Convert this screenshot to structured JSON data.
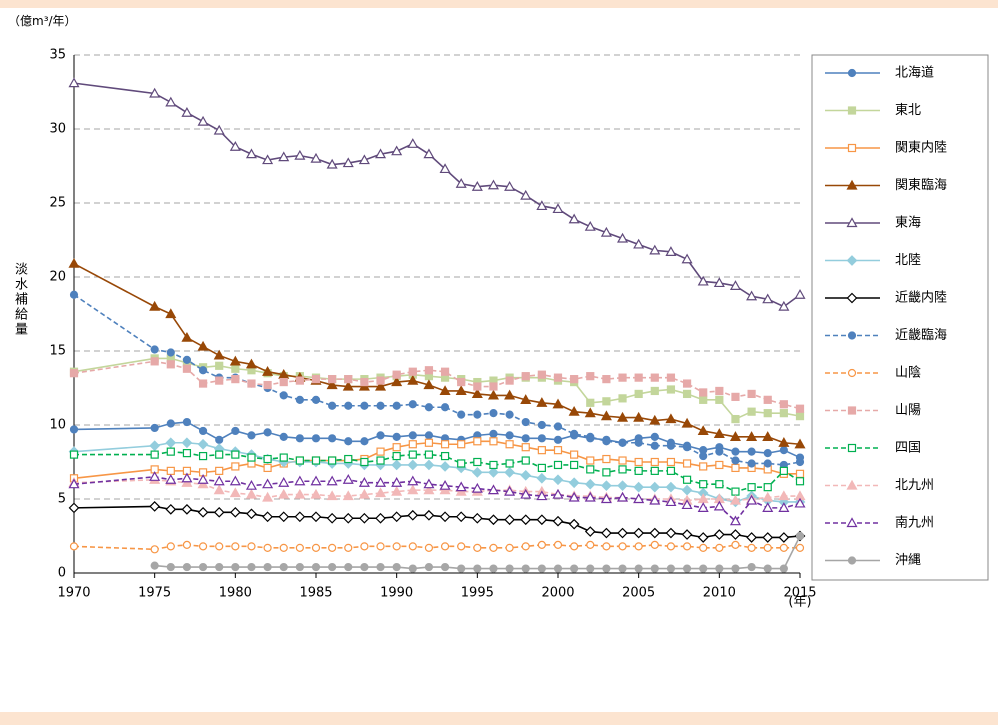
{
  "chart_data": {
    "type": "line",
    "y_unit": "（億m³/年）",
    "ylabel": "淡水補給量",
    "xlabel": "(年)",
    "x": [
      1970,
      1975,
      1976,
      1977,
      1978,
      1979,
      1980,
      1981,
      1982,
      1983,
      1984,
      1985,
      1986,
      1987,
      1988,
      1989,
      1990,
      1991,
      1992,
      1993,
      1994,
      1995,
      1996,
      1997,
      1998,
      1999,
      2000,
      2001,
      2002,
      2003,
      2004,
      2005,
      2006,
      2007,
      2008,
      2009,
      2010,
      2011,
      2012,
      2013,
      2014,
      2015
    ],
    "xlim": [
      1970,
      2015
    ],
    "xticks": [
      1970,
      1975,
      1980,
      1985,
      1990,
      1995,
      2000,
      2005,
      2010,
      2015
    ],
    "ylim": [
      0,
      35
    ],
    "yticks": [
      0,
      5,
      10,
      15,
      20,
      25,
      30,
      35
    ],
    "grid": true,
    "series": [
      {
        "name": "北海道",
        "color": "#4f81bd",
        "marker": "circle",
        "fill": "filled",
        "dash": false,
        "values": [
          9.7,
          9.8,
          10.1,
          10.2,
          9.6,
          9.0,
          9.6,
          9.3,
          9.5,
          9.2,
          9.1,
          9.1,
          9.1,
          8.9,
          8.9,
          9.3,
          9.2,
          9.3,
          9.3,
          9.1,
          9.0,
          9.3,
          9.4,
          9.3,
          9.1,
          9.1,
          9.0,
          9.3,
          9.1,
          9.0,
          8.8,
          9.1,
          9.2,
          8.8,
          8.6,
          8.3,
          8.5,
          8.2,
          8.2,
          8.1,
          8.3,
          7.8
        ]
      },
      {
        "name": "東北",
        "color": "#c3d69b",
        "marker": "square",
        "fill": "filled",
        "dash": false,
        "values": [
          13.6,
          14.5,
          14.5,
          14.2,
          13.9,
          14.0,
          13.8,
          13.7,
          13.5,
          13.3,
          13.3,
          13.2,
          13.1,
          13.1,
          13.1,
          13.2,
          13.3,
          13.4,
          13.3,
          13.2,
          13.1,
          12.9,
          13.0,
          13.2,
          13.2,
          13.2,
          13.0,
          12.9,
          11.5,
          11.6,
          11.8,
          12.1,
          12.3,
          12.4,
          12.1,
          11.7,
          11.7,
          10.4,
          10.9,
          10.8,
          10.8,
          10.6
        ]
      },
      {
        "name": "関東内陸",
        "color": "#f79646",
        "marker": "square",
        "fill": "open",
        "dash": false,
        "values": [
          6.4,
          7.0,
          6.9,
          6.9,
          6.8,
          6.9,
          7.2,
          7.4,
          7.1,
          7.4,
          7.6,
          7.6,
          7.6,
          7.6,
          7.7,
          8.2,
          8.5,
          8.7,
          8.8,
          8.7,
          8.7,
          8.9,
          8.9,
          8.7,
          8.5,
          8.3,
          8.3,
          8.0,
          7.6,
          7.7,
          7.6,
          7.5,
          7.5,
          7.5,
          7.4,
          7.2,
          7.3,
          7.1,
          7.1,
          7.0,
          6.7,
          6.7
        ]
      },
      {
        "name": "関東臨海",
        "color": "#984807",
        "marker": "triangle",
        "fill": "filled",
        "dash": false,
        "values": [
          20.9,
          18.0,
          17.5,
          15.9,
          15.3,
          14.7,
          14.3,
          14.1,
          13.6,
          13.4,
          13.2,
          13.0,
          12.7,
          12.6,
          12.6,
          12.6,
          12.9,
          13.0,
          12.7,
          12.3,
          12.3,
          12.1,
          12.0,
          12.0,
          11.7,
          11.5,
          11.4,
          10.9,
          10.8,
          10.6,
          10.5,
          10.5,
          10.3,
          10.4,
          10.1,
          9.6,
          9.4,
          9.2,
          9.2,
          9.2,
          8.8,
          8.7
        ]
      },
      {
        "name": "東海",
        "color": "#604a7b",
        "marker": "triangle",
        "fill": "open",
        "dash": false,
        "values": [
          33.1,
          32.4,
          31.8,
          31.1,
          30.5,
          29.9,
          28.8,
          28.3,
          27.9,
          28.1,
          28.2,
          28.0,
          27.6,
          27.7,
          27.9,
          28.3,
          28.5,
          29.0,
          28.3,
          27.3,
          26.3,
          26.1,
          26.2,
          26.1,
          25.5,
          24.8,
          24.6,
          23.9,
          23.4,
          23.0,
          22.6,
          22.2,
          21.8,
          21.7,
          21.2,
          19.7,
          19.6,
          19.4,
          18.7,
          18.5,
          18.0,
          18.8
        ]
      },
      {
        "name": "北陸",
        "color": "#93cddd",
        "marker": "diamond",
        "fill": "filled",
        "dash": false,
        "values": [
          8.2,
          8.6,
          8.8,
          8.8,
          8.7,
          8.4,
          8.2,
          8.0,
          7.7,
          7.5,
          7.5,
          7.5,
          7.4,
          7.4,
          7.3,
          7.3,
          7.3,
          7.3,
          7.3,
          7.2,
          7.1,
          6.8,
          6.8,
          6.8,
          6.6,
          6.4,
          6.3,
          6.1,
          6.0,
          5.9,
          5.9,
          5.8,
          5.8,
          5.8,
          5.6,
          5.4,
          5.0,
          4.8,
          5.2,
          4.9,
          4.8,
          4.8
        ]
      },
      {
        "name": "近畿内陸",
        "color": "#000000",
        "marker": "diamond",
        "fill": "open",
        "dash": false,
        "values": [
          4.4,
          4.5,
          4.3,
          4.3,
          4.1,
          4.1,
          4.1,
          4.0,
          3.8,
          3.8,
          3.8,
          3.8,
          3.7,
          3.7,
          3.7,
          3.7,
          3.8,
          3.9,
          3.9,
          3.8,
          3.8,
          3.7,
          3.6,
          3.6,
          3.6,
          3.6,
          3.5,
          3.3,
          2.8,
          2.7,
          2.7,
          2.7,
          2.7,
          2.7,
          2.6,
          2.4,
          2.6,
          2.6,
          2.4,
          2.4,
          2.4,
          2.5
        ]
      },
      {
        "name": "近畿臨海",
        "color": "#4f81bd",
        "marker": "circle",
        "fill": "filled",
        "dash": true,
        "values": [
          18.8,
          15.1,
          14.9,
          14.4,
          13.7,
          13.2,
          13.2,
          12.8,
          12.5,
          12.0,
          11.7,
          11.7,
          11.3,
          11.3,
          11.3,
          11.3,
          11.3,
          11.4,
          11.2,
          11.2,
          10.7,
          10.7,
          10.8,
          10.7,
          10.2,
          10.0,
          9.9,
          9.4,
          9.2,
          8.9,
          8.8,
          8.8,
          8.6,
          8.6,
          8.5,
          7.9,
          8.2,
          7.6,
          7.4,
          7.4,
          7.3,
          7.5
        ]
      },
      {
        "name": "山陰",
        "color": "#f79646",
        "marker": "circle",
        "fill": "open",
        "dash": true,
        "values": [
          1.8,
          1.6,
          1.8,
          1.9,
          1.8,
          1.8,
          1.8,
          1.8,
          1.7,
          1.7,
          1.7,
          1.7,
          1.7,
          1.7,
          1.8,
          1.8,
          1.8,
          1.8,
          1.7,
          1.8,
          1.8,
          1.7,
          1.7,
          1.7,
          1.8,
          1.9,
          1.9,
          1.8,
          1.9,
          1.8,
          1.8,
          1.8,
          1.9,
          1.8,
          1.8,
          1.7,
          1.7,
          1.9,
          1.7,
          1.7,
          1.7,
          1.7
        ]
      },
      {
        "name": "山陽",
        "color": "#e6a9a8",
        "marker": "square",
        "fill": "filled",
        "dash": true,
        "values": [
          13.5,
          14.3,
          14.1,
          13.8,
          12.8,
          13.0,
          13.1,
          12.8,
          12.7,
          12.9,
          13.0,
          13.1,
          13.1,
          13.1,
          12.9,
          13.0,
          13.4,
          13.6,
          13.7,
          13.6,
          12.9,
          12.6,
          12.6,
          13.0,
          13.3,
          13.4,
          13.2,
          13.1,
          13.3,
          13.1,
          13.2,
          13.2,
          13.2,
          13.2,
          12.8,
          12.2,
          12.3,
          11.9,
          12.1,
          11.7,
          11.4,
          11.1
        ]
      },
      {
        "name": "四国",
        "color": "#00b050",
        "marker": "square",
        "fill": "open",
        "dash": true,
        "values": [
          8.0,
          8.0,
          8.2,
          8.1,
          7.9,
          8.0,
          8.0,
          7.8,
          7.7,
          7.8,
          7.6,
          7.6,
          7.6,
          7.7,
          7.5,
          7.6,
          7.9,
          8.0,
          8.0,
          7.9,
          7.4,
          7.5,
          7.3,
          7.4,
          7.6,
          7.1,
          7.3,
          7.3,
          7.0,
          6.8,
          7.0,
          6.9,
          6.9,
          6.9,
          6.3,
          6.0,
          6.0,
          5.5,
          5.8,
          5.8,
          6.9,
          6.2
        ]
      },
      {
        "name": "北九州",
        "color": "#f2b8b8",
        "marker": "triangle",
        "fill": "filled",
        "dash": true,
        "values": [
          6.1,
          6.3,
          6.2,
          6.1,
          6.0,
          5.6,
          5.4,
          5.3,
          5.1,
          5.3,
          5.3,
          5.3,
          5.2,
          5.2,
          5.3,
          5.4,
          5.5,
          5.6,
          5.6,
          5.6,
          5.5,
          5.5,
          5.6,
          5.6,
          5.5,
          5.5,
          5.3,
          5.2,
          5.2,
          5.1,
          5.1,
          5.0,
          5.0,
          5.0,
          4.9,
          5.0,
          5.0,
          4.9,
          5.0,
          5.1,
          5.2,
          5.2
        ]
      },
      {
        "name": "南九州",
        "color": "#7030a0",
        "marker": "triangle",
        "fill": "open",
        "dash": true,
        "values": [
          6.0,
          6.5,
          6.3,
          6.4,
          6.3,
          6.2,
          6.2,
          5.9,
          6.0,
          6.1,
          6.2,
          6.2,
          6.2,
          6.3,
          6.1,
          6.1,
          6.1,
          6.2,
          6.0,
          5.9,
          5.8,
          5.7,
          5.6,
          5.5,
          5.3,
          5.2,
          5.3,
          5.1,
          5.1,
          5.0,
          5.1,
          5.0,
          4.9,
          4.8,
          4.6,
          4.4,
          4.5,
          3.5,
          4.9,
          4.4,
          4.4,
          4.7
        ]
      },
      {
        "name": "沖縄",
        "color": "#a6a6a6",
        "marker": "circle",
        "fill": "filled",
        "dash": false,
        "values": [
          null,
          0.5,
          0.4,
          0.4,
          0.4,
          0.4,
          0.4,
          0.4,
          0.4,
          0.4,
          0.4,
          0.4,
          0.4,
          0.4,
          0.4,
          0.4,
          0.4,
          0.3,
          0.4,
          0.4,
          0.3,
          0.3,
          0.3,
          0.3,
          0.3,
          0.3,
          0.3,
          0.3,
          0.3,
          0.3,
          0.3,
          0.3,
          0.3,
          0.3,
          0.3,
          0.3,
          0.3,
          0.3,
          0.4,
          0.3,
          0.3,
          2.5
        ]
      }
    ]
  }
}
